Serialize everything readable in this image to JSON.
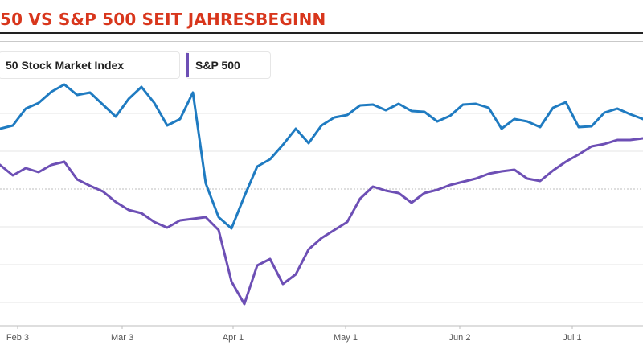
{
  "title": "50 VS S&P 500 SEIT JAHRESBEGINN",
  "chart_data": {
    "type": "line",
    "title": "50 VS S&P 500 SEIT JAHRESBEGINN",
    "x_ticks": [
      "Feb 3",
      "Mar 3",
      "Apr 1",
      "May 1",
      "Jun 2",
      "Jul 1"
    ],
    "x": [
      0,
      2,
      4,
      6,
      8,
      10,
      12,
      14,
      16,
      18,
      20,
      22,
      24,
      26,
      28,
      30,
      32,
      34,
      36,
      38,
      40,
      42,
      44,
      46,
      48,
      50,
      52,
      54,
      56,
      58,
      60,
      62,
      64,
      66,
      68,
      70,
      72,
      74,
      76,
      78,
      80,
      82,
      84,
      86,
      88,
      90,
      92,
      94,
      96,
      98,
      100
    ],
    "y_gridlines": 5,
    "grid": true,
    "legend_position": "top-left",
    "series": [
      {
        "name": "50 Stock Market Index",
        "color": "#1f7bc1",
        "values": [
          160,
          156,
          135,
          128,
          114,
          105,
          118,
          115,
          130,
          145,
          123,
          108,
          128,
          156,
          148,
          115,
          228,
          270,
          284,
          244,
          207,
          198,
          180,
          160,
          178,
          156,
          146,
          143,
          131,
          130,
          137,
          129,
          138,
          139,
          151,
          144,
          130,
          129,
          134,
          160,
          148,
          151,
          158,
          134,
          127,
          158,
          157,
          140,
          135,
          142,
          148
        ]
      },
      {
        "name": "S&P 500",
        "color": "#6d4fb5",
        "values": [
          205,
          218,
          209,
          214,
          205,
          201,
          223,
          231,
          238,
          251,
          261,
          265,
          276,
          283,
          274,
          272,
          270,
          286,
          350,
          378,
          330,
          322,
          353,
          341,
          310,
          296,
          286,
          276,
          247,
          232,
          237,
          240,
          252,
          240,
          236,
          230,
          226,
          222,
          216,
          213,
          211,
          222,
          225,
          212,
          201,
          192,
          182,
          179,
          174,
          174,
          172
        ]
      }
    ]
  }
}
